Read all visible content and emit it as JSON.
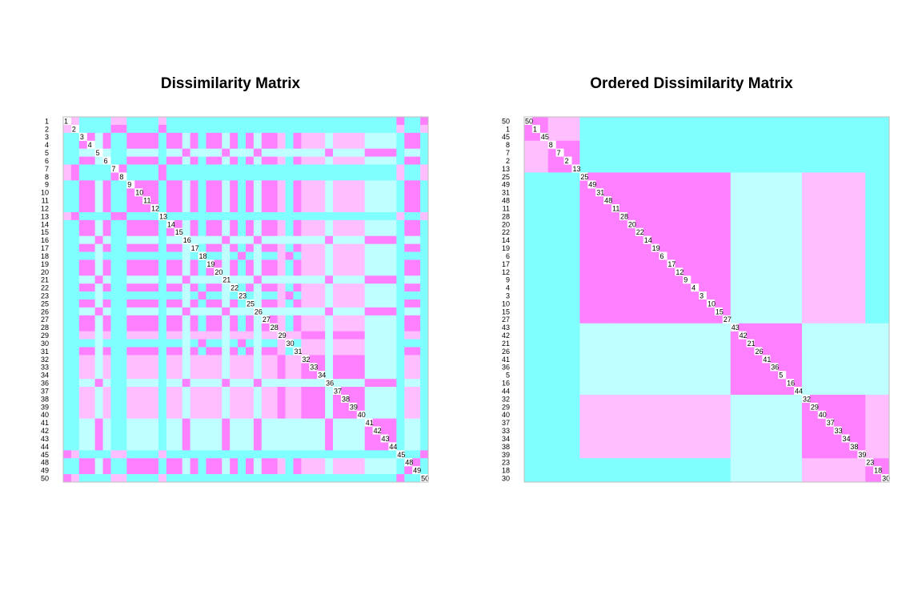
{
  "colors": {
    "bands": [
      "#ff80ff",
      "#ffbfff",
      "#bfffff",
      "#80ffff"
    ],
    "border": "#bebebe",
    "text": "#000000",
    "label_box": "#ffffff"
  },
  "chart_data": [
    {
      "type": "heatmap",
      "title": "Dissimilarity Matrix",
      "order": [
        1,
        2,
        3,
        4,
        5,
        6,
        7,
        8,
        9,
        10,
        11,
        12,
        13,
        14,
        15,
        16,
        17,
        18,
        19,
        20,
        21,
        22,
        23,
        25,
        26,
        27,
        28,
        29,
        30,
        31,
        32,
        33,
        34,
        36,
        37,
        38,
        39,
        40,
        41,
        42,
        43,
        44,
        45,
        48,
        49,
        50
      ],
      "xlabel": "",
      "ylabel": "",
      "legend": "none",
      "grid": false
    },
    {
      "type": "heatmap",
      "title": "Ordered Dissimilarity Matrix",
      "order": [
        50,
        1,
        45,
        8,
        7,
        2,
        13,
        25,
        49,
        31,
        48,
        11,
        28,
        20,
        22,
        14,
        19,
        6,
        17,
        12,
        9,
        4,
        3,
        10,
        15,
        27,
        43,
        42,
        21,
        26,
        41,
        36,
        5,
        16,
        44,
        32,
        29,
        40,
        37,
        33,
        34,
        38,
        39,
        23,
        18,
        30
      ],
      "clusters": [
        [
          50,
          1,
          45
        ],
        [
          8,
          7,
          2,
          13
        ],
        [
          25,
          49,
          31,
          48,
          11,
          28,
          20,
          22,
          14,
          19,
          6,
          17,
          12,
          9,
          4,
          3,
          10,
          15,
          27
        ],
        [
          43,
          42,
          21,
          26,
          41,
          36,
          5,
          16,
          44
        ],
        [
          32,
          29,
          40,
          37,
          33,
          34,
          38,
          39
        ],
        [
          23,
          18,
          30
        ]
      ],
      "xlabel": "",
      "ylabel": "",
      "legend": "none",
      "grid": false
    }
  ]
}
